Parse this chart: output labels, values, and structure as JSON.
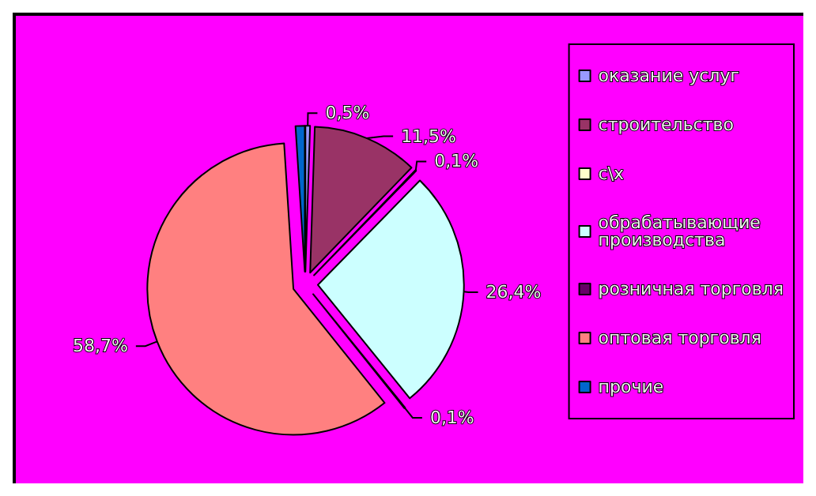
{
  "chart_data": {
    "type": "pie",
    "categories": [
      "оказание услуг",
      "строительство",
      "с\\х",
      "обрабатывающие производства",
      "розничная торговля",
      "оптовая торговля",
      "прочие"
    ],
    "values": [
      0.5,
      11.5,
      0.1,
      26.4,
      0.1,
      58.7,
      1
    ],
    "value_labels": [
      "0,5%",
      "11,5%",
      "0,1%",
      "26,4%",
      "0,1%",
      "58,7%",
      null
    ],
    "colors": [
      "#9999ff",
      "#993366",
      "#ffffcc",
      "#ccffff",
      "#660066",
      "#ff8080",
      "#0066cc"
    ],
    "legend": "right"
  }
}
